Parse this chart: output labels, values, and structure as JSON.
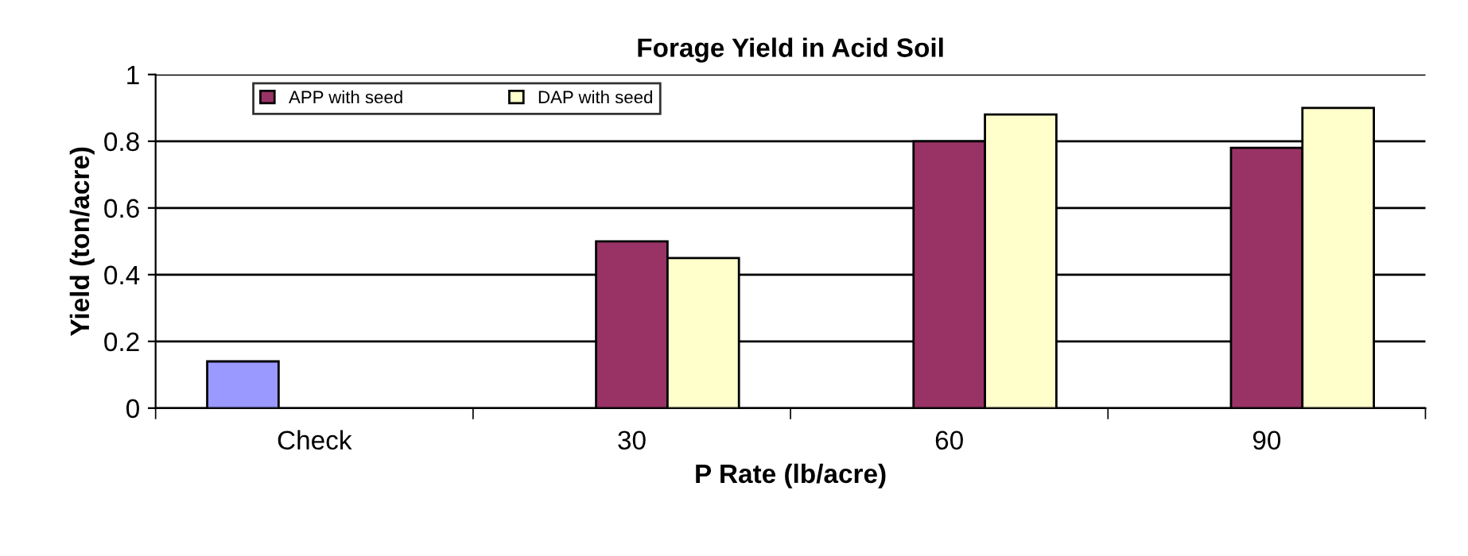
{
  "chart_data": {
    "type": "bar",
    "title": "Forage Yield in Acid Soil",
    "xlabel": "P Rate (lb/acre)",
    "ylabel": "Yield (ton/acre)",
    "categories": [
      "Check",
      "30",
      "60",
      "90"
    ],
    "series": [
      {
        "color": "#9999ff",
        "values": [
          0.14,
          null,
          null,
          null
        ]
      },
      {
        "name": "APP with seed",
        "color": "#993366",
        "values": [
          null,
          0.5,
          0.8,
          0.78
        ]
      },
      {
        "name": "DAP with seed",
        "color": "#ffffcc",
        "values": [
          null,
          0.45,
          0.88,
          0.9
        ]
      }
    ],
    "ylim": [
      0,
      1
    ],
    "yticks": [
      0,
      0.2,
      0.4,
      0.6,
      0.8,
      1
    ],
    "grid": "y",
    "legend": "top left"
  }
}
